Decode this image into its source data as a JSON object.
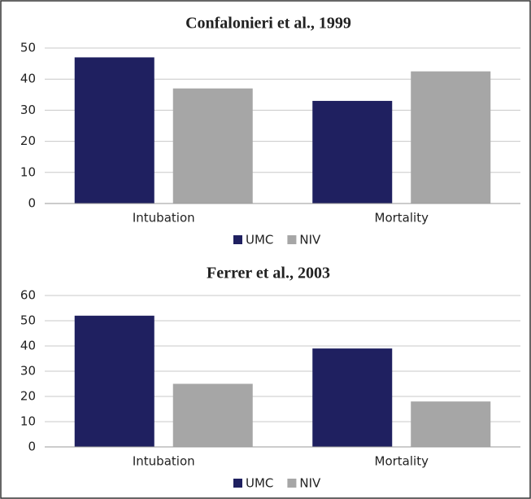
{
  "chart_data": [
    {
      "type": "bar",
      "title": "Confalonieri et al., 1999",
      "categories": [
        "Intubation",
        "Mortality"
      ],
      "series": [
        {
          "name": "UMC",
          "color": "#1f2060",
          "values": [
            47,
            33
          ]
        },
        {
          "name": "NIV",
          "color": "#a6a6a6",
          "values": [
            37,
            42.5
          ]
        }
      ],
      "ylim": [
        0,
        50
      ],
      "yticks": [
        0,
        10,
        20,
        30,
        40,
        50
      ],
      "grid": true,
      "legend": "bottom"
    },
    {
      "type": "bar",
      "title": "Ferrer et al., 2003",
      "categories": [
        "Intubation",
        "Mortality"
      ],
      "series": [
        {
          "name": "UMC",
          "color": "#1f2060",
          "values": [
            52,
            39
          ]
        },
        {
          "name": "NIV",
          "color": "#a6a6a6",
          "values": [
            25,
            18
          ]
        }
      ],
      "ylim": [
        0,
        60
      ],
      "yticks": [
        0,
        10,
        20,
        30,
        40,
        50,
        60
      ],
      "grid": true,
      "legend": "bottom"
    }
  ]
}
